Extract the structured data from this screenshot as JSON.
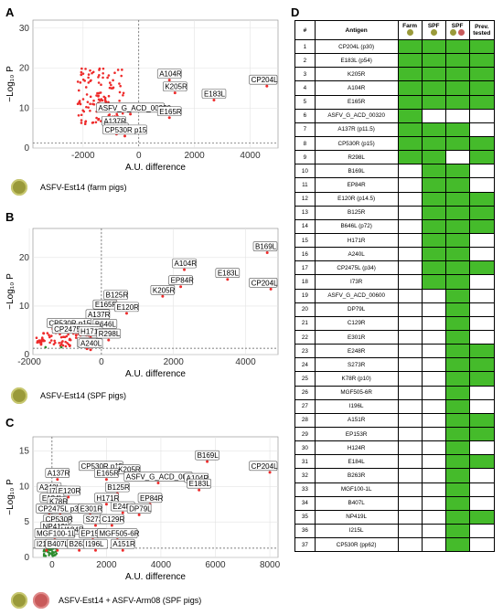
{
  "panels": {
    "A": {
      "letter": "A",
      "legend": "ASFV-Est14 (farm pigs)"
    },
    "B": {
      "letter": "B",
      "legend": "ASFV-Est14 (SPF pigs)"
    },
    "C": {
      "letter": "C",
      "legend": "ASFV-Est14 + ASFV-Arm08 (SPF pigs)"
    },
    "D": {
      "letter": "D"
    }
  },
  "axes": {
    "xlabel": "A.U. difference",
    "ylabel": "−Log₁₀ P"
  },
  "colors": {
    "point": "#ee2b2b",
    "sig_point": "#2e8b2e",
    "table_green": "#45bb2b",
    "pig_farm": "#9a9a3a",
    "pig_arm": "#c85a5a"
  },
  "chart_data": [
    {
      "type": "scatter",
      "panel": "A",
      "xlim": [
        -3800,
        5000
      ],
      "ylim": [
        0,
        32
      ],
      "xticks": [
        -2000,
        0,
        2000,
        4000
      ],
      "yticks": [
        0,
        10,
        20,
        30
      ],
      "labeled_points": [
        {
          "label": "CP204L",
          "x": 4600,
          "y": 15.5
        },
        {
          "label": "A104R",
          "x": 1100,
          "y": 17
        },
        {
          "label": "K205R",
          "x": 1300,
          "y": 13.8
        },
        {
          "label": "E183L",
          "x": 2700,
          "y": 12
        },
        {
          "label": "ASFV_G_ACD_00320",
          "x": -300,
          "y": 8.5
        },
        {
          "label": "E165R",
          "x": 1100,
          "y": 7.6
        },
        {
          "label": "A137R",
          "x": -900,
          "y": 5.2
        },
        {
          "label": "R298L",
          "x": -800,
          "y": 3.5
        },
        {
          "label": "CP530R p15",
          "x": -500,
          "y": 3.0
        }
      ]
    },
    {
      "type": "scatter",
      "panel": "B",
      "xlim": [
        -1900,
        4900
      ],
      "ylim": [
        0,
        26
      ],
      "xticks": [
        -2000,
        0,
        2000,
        4000
      ],
      "yticks": [
        0,
        10,
        20
      ],
      "labeled_points": [
        {
          "label": "B169L",
          "x": 4600,
          "y": 21
        },
        {
          "label": "A104R",
          "x": 2300,
          "y": 17.5
        },
        {
          "label": "E183L",
          "x": 3500,
          "y": 15.5
        },
        {
          "label": "EP84R",
          "x": 2200,
          "y": 14
        },
        {
          "label": "CP204L",
          "x": 4700,
          "y": 13.5
        },
        {
          "label": "K205R",
          "x": 1700,
          "y": 12
        },
        {
          "label": "B125R",
          "x": 400,
          "y": 11
        },
        {
          "label": "E165R",
          "x": 100,
          "y": 9
        },
        {
          "label": "E120R",
          "x": 700,
          "y": 8.5
        },
        {
          "label": "A137R",
          "x": -100,
          "y": 7
        },
        {
          "label": "CP530R p15",
          "x": -900,
          "y": 5.2
        },
        {
          "label": "B646L",
          "x": 100,
          "y": 5
        },
        {
          "label": "CP2475L p34",
          "x": -700,
          "y": 4
        },
        {
          "label": "H171R",
          "x": -300,
          "y": 3.5
        },
        {
          "label": "R298L",
          "x": 200,
          "y": 3
        },
        {
          "label": "I73R",
          "x": -400,
          "y": 1.2
        },
        {
          "label": "A240L",
          "x": -300,
          "y": 1.0
        }
      ]
    },
    {
      "type": "scatter",
      "panel": "C",
      "xlim": [
        -700,
        8300
      ],
      "ylim": [
        0,
        17
      ],
      "xticks": [
        0,
        2000,
        4000,
        6000,
        8000
      ],
      "yticks": [
        0,
        5,
        10,
        15
      ],
      "labeled_points": [
        {
          "label": "B169L",
          "x": 5700,
          "y": 13.5
        },
        {
          "label": "CP204L",
          "x": 8000,
          "y": 12
        },
        {
          "label": "CP530R p15",
          "x": 1800,
          "y": 12
        },
        {
          "label": "K205R",
          "x": 2800,
          "y": 11.5
        },
        {
          "label": "E165R",
          "x": 2000,
          "y": 11
        },
        {
          "label": "ASFV_G_ACD_00600",
          "x": 3900,
          "y": 10.5
        },
        {
          "label": "A104R",
          "x": 5300,
          "y": 10.3
        },
        {
          "label": "A137R",
          "x": 200,
          "y": 11
        },
        {
          "label": "B125R",
          "x": 2400,
          "y": 9
        },
        {
          "label": "A240L",
          "x": -100,
          "y": 9
        },
        {
          "label": "I73R",
          "x": 200,
          "y": 8.5
        },
        {
          "label": "E120R",
          "x": 600,
          "y": 8.5
        },
        {
          "label": "E183L",
          "x": 5400,
          "y": 9.5
        },
        {
          "label": "E184L",
          "x": 0,
          "y": 7.5
        },
        {
          "label": "K78R",
          "x": 200,
          "y": 7
        },
        {
          "label": "H171R",
          "x": 2000,
          "y": 7.5
        },
        {
          "label": "EP84R",
          "x": 3600,
          "y": 7.5
        },
        {
          "label": "B646",
          "x": -100,
          "y": 6
        },
        {
          "label": "CP2475L p34",
          "x": 300,
          "y": 6
        },
        {
          "label": "E248R",
          "x": 2600,
          "y": 6.3
        },
        {
          "label": "DP79L",
          "x": 3200,
          "y": 6
        },
        {
          "label": "E301R",
          "x": 1400,
          "y": 6
        },
        {
          "label": "CP530R",
          "x": 200,
          "y": 4.5
        },
        {
          "label": "S273R",
          "x": 1600,
          "y": 4.5
        },
        {
          "label": "C129R",
          "x": 2200,
          "y": 4.5
        },
        {
          "label": "NP419L",
          "x": 100,
          "y": 3.5
        },
        {
          "label": "H124R",
          "x": 700,
          "y": 3
        },
        {
          "label": "MGF100-1L",
          "x": 100,
          "y": 2.5
        },
        {
          "label": "EP153R",
          "x": 1500,
          "y": 2.5
        },
        {
          "label": "MGF505-6R",
          "x": 2400,
          "y": 2.5
        },
        {
          "label": "I215L",
          "x": -200,
          "y": 1
        },
        {
          "label": "B407L",
          "x": 200,
          "y": 1
        },
        {
          "label": "B263R",
          "x": 1000,
          "y": 1
        },
        {
          "label": "I196L",
          "x": 1600,
          "y": 1
        },
        {
          "label": "A151R",
          "x": 2600,
          "y": 1
        }
      ]
    }
  ],
  "table": {
    "headers": [
      "#",
      "Antigen",
      "Farm",
      "SPF",
      "SPF",
      "Prev. tested"
    ],
    "rows": [
      {
        "n": "1",
        "name": "CP204L (p30)",
        "g": [
          1,
          1,
          1,
          1
        ]
      },
      {
        "n": "2",
        "name": "E183L (p54)",
        "g": [
          1,
          1,
          1,
          1
        ]
      },
      {
        "n": "3",
        "name": "K205R",
        "g": [
          1,
          1,
          1,
          1
        ]
      },
      {
        "n": "4",
        "name": "A104R",
        "g": [
          1,
          1,
          1,
          1
        ]
      },
      {
        "n": "5",
        "name": "E165R",
        "g": [
          1,
          1,
          1,
          1
        ]
      },
      {
        "n": "6",
        "name": "ASFV_G_ACD_00320",
        "g": [
          1,
          0,
          0,
          0
        ]
      },
      {
        "n": "7",
        "name": "A137R (p11.5)",
        "g": [
          1,
          1,
          1,
          0
        ]
      },
      {
        "n": "8",
        "name": "CP530R (p15)",
        "g": [
          1,
          1,
          1,
          1
        ]
      },
      {
        "n": "9",
        "name": "R298L",
        "g": [
          1,
          1,
          0,
          1
        ]
      },
      {
        "n": "10",
        "name": "B169L",
        "g": [
          0,
          1,
          1,
          0
        ]
      },
      {
        "n": "11",
        "name": "EP84R",
        "g": [
          0,
          1,
          1,
          0
        ]
      },
      {
        "n": "12",
        "name": "E120R (p14.5)",
        "g": [
          0,
          1,
          1,
          1
        ]
      },
      {
        "n": "13",
        "name": "B125R",
        "g": [
          0,
          1,
          1,
          1
        ]
      },
      {
        "n": "14",
        "name": "B646L (p72)",
        "g": [
          0,
          1,
          1,
          1
        ]
      },
      {
        "n": "15",
        "name": "H171R",
        "g": [
          0,
          1,
          1,
          0
        ]
      },
      {
        "n": "16",
        "name": "A240L",
        "g": [
          0,
          1,
          1,
          0
        ]
      },
      {
        "n": "17",
        "name": "CP2475L (p34)",
        "g": [
          0,
          1,
          1,
          1
        ]
      },
      {
        "n": "18",
        "name": "I73R",
        "g": [
          0,
          1,
          1,
          0
        ]
      },
      {
        "n": "19",
        "name": "ASFV_G_ACD_00600",
        "g": [
          0,
          0,
          1,
          0
        ]
      },
      {
        "n": "20",
        "name": "DP79L",
        "g": [
          0,
          0,
          1,
          0
        ]
      },
      {
        "n": "21",
        "name": "C129R",
        "g": [
          0,
          0,
          1,
          0
        ]
      },
      {
        "n": "22",
        "name": "E301R",
        "g": [
          0,
          0,
          1,
          0
        ]
      },
      {
        "n": "23",
        "name": "E248R",
        "g": [
          0,
          0,
          1,
          1
        ]
      },
      {
        "n": "24",
        "name": "S273R",
        "g": [
          0,
          0,
          1,
          1
        ]
      },
      {
        "n": "25",
        "name": "K78R (p10)",
        "g": [
          0,
          0,
          1,
          1
        ]
      },
      {
        "n": "26",
        "name": "MGF505-6R",
        "g": [
          0,
          0,
          1,
          0
        ]
      },
      {
        "n": "27",
        "name": "I196L",
        "g": [
          0,
          0,
          1,
          0
        ]
      },
      {
        "n": "28",
        "name": "A151R",
        "g": [
          0,
          0,
          1,
          1
        ]
      },
      {
        "n": "29",
        "name": "EP153R",
        "g": [
          0,
          0,
          1,
          1
        ]
      },
      {
        "n": "30",
        "name": "H124R",
        "g": [
          0,
          0,
          1,
          0
        ]
      },
      {
        "n": "31",
        "name": "E184L",
        "g": [
          0,
          0,
          1,
          1
        ]
      },
      {
        "n": "32",
        "name": "B263R",
        "g": [
          0,
          0,
          1,
          0
        ]
      },
      {
        "n": "33",
        "name": "MGF100-1L",
        "g": [
          0,
          0,
          1,
          0
        ]
      },
      {
        "n": "34",
        "name": "B407L",
        "g": [
          0,
          0,
          1,
          0
        ]
      },
      {
        "n": "35",
        "name": "NP419L",
        "g": [
          0,
          0,
          1,
          1
        ]
      },
      {
        "n": "36",
        "name": "I215L",
        "g": [
          0,
          0,
          1,
          0
        ]
      },
      {
        "n": "37",
        "name": "CP530R (pp62)",
        "g": [
          0,
          0,
          1,
          0
        ]
      }
    ]
  }
}
